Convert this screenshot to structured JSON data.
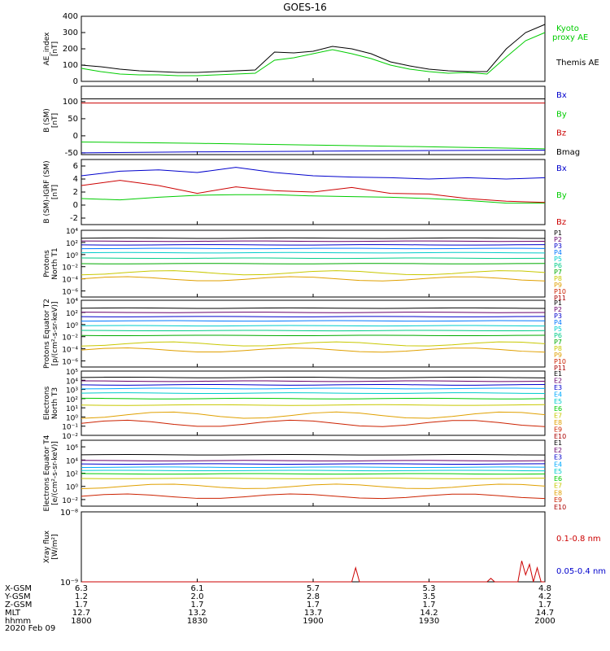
{
  "title": "GOES-16",
  "date_label": "2020 Feb 09",
  "colors": {
    "black": "#000000",
    "green": "#00cc00",
    "blue": "#0000cc",
    "red": "#cc0000"
  },
  "footer": {
    "rows": [
      {
        "label": "X-GSM",
        "values": [
          "6.3",
          "6.1",
          "5.7",
          "5.3",
          "4.8"
        ]
      },
      {
        "label": "Y-GSM",
        "values": [
          "1.2",
          "2.0",
          "2.8",
          "3.5",
          "4.2"
        ]
      },
      {
        "label": "Z-GSM",
        "values": [
          "1.7",
          "1.7",
          "1.7",
          "1.7",
          "1.7"
        ]
      },
      {
        "label": "MLT",
        "values": [
          "12.7",
          "13.2",
          "13.7",
          "14.2",
          "14.7"
        ]
      },
      {
        "label": "hhmm",
        "values": [
          "1800",
          "1830",
          "1900",
          "1930",
          "2000"
        ]
      }
    ]
  },
  "chart_data": [
    {
      "type": "line",
      "ylabel": "AE_index [nT]",
      "ylim": [
        0,
        400
      ],
      "yticks": [
        "0",
        "100",
        "200",
        "300",
        "400"
      ],
      "legend": [
        {
          "label": "Kyoto proxy AE",
          "color": "#00cc00"
        },
        {
          "label": "Themis AE",
          "color": "#000000"
        }
      ],
      "x_minutes": [
        0,
        5,
        10,
        15,
        20,
        25,
        30,
        35,
        40,
        45,
        50,
        55,
        60,
        65,
        70,
        75,
        80,
        85,
        90,
        95,
        100,
        105,
        110,
        115,
        120
      ],
      "series": [
        {
          "name": "Themis AE",
          "color": "#000000",
          "values": [
            100,
            90,
            75,
            65,
            60,
            55,
            55,
            60,
            65,
            70,
            180,
            175,
            185,
            215,
            200,
            170,
            120,
            95,
            75,
            65,
            60,
            60,
            200,
            300,
            350
          ]
        },
        {
          "name": "Kyoto proxy AE",
          "color": "#00cc00",
          "values": [
            80,
            60,
            45,
            40,
            40,
            35,
            35,
            40,
            45,
            50,
            130,
            145,
            170,
            195,
            170,
            140,
            100,
            75,
            60,
            50,
            55,
            45,
            150,
            250,
            300
          ]
        }
      ]
    },
    {
      "type": "line",
      "ylabel": "B (SM) [nT]",
      "ylim": [
        -55,
        145
      ],
      "yticks": [
        "-50",
        "0",
        "50",
        "100"
      ],
      "legend": [
        {
          "label": "Bx",
          "color": "#0000cc"
        },
        {
          "label": "By",
          "color": "#00cc00"
        },
        {
          "label": "Bz",
          "color": "#cc0000"
        },
        {
          "label": "Bmag",
          "color": "#000000"
        }
      ],
      "x_minutes": [
        0,
        30,
        60,
        90,
        120
      ],
      "series": [
        {
          "name": "Bx",
          "color": "#0000cc",
          "values": [
            -50,
            -47,
            -45,
            -43,
            -42
          ]
        },
        {
          "name": "By",
          "color": "#00cc00",
          "values": [
            -18,
            -22,
            -27,
            -32,
            -38
          ]
        },
        {
          "name": "Bz",
          "color": "#cc0000",
          "values": [
            96,
            96,
            96,
            96,
            96
          ]
        },
        {
          "name": "Bmag",
          "color": "#000000",
          "values": [
            108,
            108,
            108,
            108,
            108
          ]
        }
      ]
    },
    {
      "type": "line",
      "ylabel": "B (SM)-IGRF (SM) [nT]",
      "ylim": [
        -3,
        7
      ],
      "yticks": [
        "-2",
        "0",
        "2",
        "4",
        "6"
      ],
      "legend": [
        {
          "label": "Bx",
          "color": "#0000cc"
        },
        {
          "label": "By",
          "color": "#00cc00"
        },
        {
          "label": "Bz",
          "color": "#cc0000"
        }
      ],
      "x_minutes": [
        0,
        10,
        20,
        30,
        40,
        50,
        60,
        70,
        80,
        90,
        100,
        110,
        120
      ],
      "series": [
        {
          "name": "Bx",
          "color": "#0000cc",
          "values": [
            4.5,
            5.2,
            5.4,
            5.0,
            5.8,
            5.0,
            4.5,
            4.3,
            4.2,
            4.0,
            4.2,
            4.0,
            4.2
          ]
        },
        {
          "name": "By",
          "color": "#00cc00",
          "values": [
            1.0,
            0.8,
            1.2,
            1.5,
            1.6,
            1.6,
            1.4,
            1.3,
            1.2,
            1.0,
            0.7,
            0.3,
            0.3
          ]
        },
        {
          "name": "Bz",
          "color": "#cc0000",
          "values": [
            3.0,
            3.8,
            3.0,
            1.8,
            2.8,
            2.2,
            2.0,
            2.7,
            1.8,
            1.7,
            1.0,
            0.6,
            0.4
          ]
        }
      ]
    },
    {
      "type": "line",
      "ylabel": "Protons North T1",
      "log": true,
      "ylim_exp": [
        -7,
        4
      ],
      "ytick_exps": [
        -6,
        -4,
        -2,
        0,
        2,
        4
      ],
      "legend": [
        "P1",
        "P2",
        "P3",
        "P4",
        "P5",
        "P6",
        "P7",
        "P8",
        "P9",
        "P10",
        "P11"
      ],
      "legend_colors": [
        "#000000",
        "#6a006a",
        "#0000cc",
        "#0077ff",
        "#00cccc",
        "#00cc88",
        "#00aa00",
        "#c8c800",
        "#e0a000",
        "#cc2200",
        "#aa0000"
      ],
      "levels_exp": [
        2.7,
        2.2,
        1.6,
        1.0,
        0.3,
        -0.6,
        -1.5,
        -3.0,
        -4.0
      ]
    },
    {
      "type": "line",
      "ylabel": "Protons Equator T2 [p/(cm²-s-sr-keV)]",
      "log": true,
      "ylim_exp": [
        -7,
        4
      ],
      "ytick_exps": [
        -6,
        -4,
        -2,
        0,
        2,
        4
      ],
      "legend": [
        "P1",
        "P2",
        "P3",
        "P4",
        "P5",
        "P6",
        "P7",
        "P8",
        "P9",
        "P10",
        "P11"
      ],
      "legend_colors": [
        "#000000",
        "#6a006a",
        "#0000cc",
        "#0077ff",
        "#00cccc",
        "#00cc88",
        "#00aa00",
        "#c8c800",
        "#e0a000",
        "#cc2200",
        "#aa0000"
      ],
      "levels_exp": [
        2.7,
        2.0,
        1.3,
        0.6,
        -0.2,
        -1.0,
        -1.8,
        -3.2,
        -4.2
      ]
    },
    {
      "type": "line",
      "ylabel": "Electrons North T3",
      "log": true,
      "ylim_exp": [
        -2,
        5
      ],
      "ytick_exps": [
        -2,
        -1,
        0,
        1,
        2,
        3,
        4,
        5
      ],
      "legend": [
        "E1",
        "E2",
        "E3",
        "E4",
        "E5",
        "E6",
        "E7",
        "E8",
        "E9",
        "E10"
      ],
      "legend_colors": [
        "#000000",
        "#6a006a",
        "#0000cc",
        "#00aaff",
        "#00cccc",
        "#00cc00",
        "#c8c800",
        "#e0a000",
        "#cc2200",
        "#aa0000"
      ],
      "levels_exp": [
        4.3,
        3.9,
        3.5,
        3.1,
        2.6,
        2.0,
        1.3,
        0.2,
        -0.7
      ]
    },
    {
      "type": "line",
      "ylabel": "Electrons Equator T4 [e/(cm²-s-sr-keV)]",
      "log": true,
      "ylim_exp": [
        -3,
        7
      ],
      "ytick_exps": [
        -2,
        0,
        2,
        4,
        6
      ],
      "legend": [
        "E1",
        "E2",
        "E3",
        "E4",
        "E5",
        "E6",
        "E7",
        "E8",
        "E9",
        "E10"
      ],
      "legend_colors": [
        "#000000",
        "#6a006a",
        "#0000cc",
        "#00aaff",
        "#00cccc",
        "#00cc00",
        "#c8c800",
        "#e0a000",
        "#cc2200",
        "#aa0000"
      ],
      "levels_exp": [
        4.8,
        3.9,
        3.4,
        2.9,
        2.4,
        1.9,
        1.2,
        0.0,
        -1.5
      ]
    },
    {
      "type": "line",
      "ylabel": "Xray flux [W/m²]",
      "log": true,
      "ylim_exp": [
        -9,
        -8
      ],
      "ytick_labels": [
        "10⁻⁹",
        "10⁻⁸"
      ],
      "legend": [
        {
          "label": "0.1-0.8 nm",
          "color": "#cc0000"
        },
        {
          "label": "0.05-0.4 nm",
          "color": "#0000cc"
        }
      ],
      "x_minutes": [
        0,
        60,
        70,
        71,
        72,
        90,
        100,
        105,
        106,
        107,
        110,
        113,
        114,
        115,
        116,
        117,
        118,
        119,
        120
      ],
      "series": [
        {
          "name": "0.1-0.8 nm",
          "color": "#cc0000",
          "values": [
            -9,
            -9,
            -9,
            -8.8,
            -9,
            -9,
            -9,
            -9,
            -8.95,
            -9,
            -9,
            -9,
            -8.7,
            -8.9,
            -8.75,
            -9,
            -8.8,
            -9,
            -9
          ]
        }
      ]
    }
  ]
}
